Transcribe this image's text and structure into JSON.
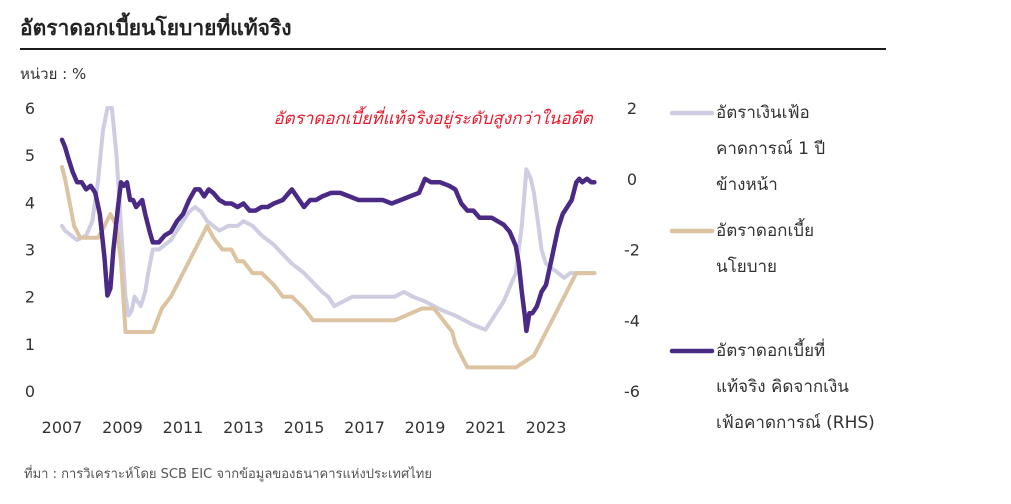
{
  "title": "อัตราดอกเบี้ยนโยบายที่แท้จริง",
  "unit_label": "หน่วย : %",
  "source": "ที่มา : การวิเคราะห์โดย SCB EIC จากข้อมูลของธนาคารแห่งประเทศไทย",
  "colors": {
    "inflation": "#cfcde2",
    "policy": "#dcc3a2",
    "real": "#4b2a86",
    "annotation": "#e8192c"
  },
  "chart_data": {
    "type": "line",
    "annotation": "อัตราดอกเบี้ยที่แท้จริงอยู่ระดับสูงกว่าในอดีต",
    "x_ticks": [
      "2007",
      "2009",
      "2011",
      "2013",
      "2015",
      "2017",
      "2019",
      "2021",
      "2023"
    ],
    "y_left": {
      "range": [
        0,
        6
      ],
      "ticks": [
        "0",
        "1",
        "2",
        "3",
        "4",
        "5",
        "6"
      ]
    },
    "y_right": {
      "range": [
        -6,
        2
      ],
      "ticks": [
        "-6",
        "-4",
        "-2",
        "0",
        "2"
      ]
    },
    "legend": [
      {
        "key": "inflation",
        "lines": [
          "อัตราเงินเฟ้อ",
          "คาดการณ์ 1 ปี",
          "ข้างหน้า"
        ]
      },
      {
        "key": "policy",
        "lines": [
          "อัตราดอกเบี้ย",
          "นโยบาย"
        ]
      },
      {
        "key": "real",
        "lines": [
          "อัตราดอกเบี้ยที่",
          "แท้จริง คิดจากเงิน",
          "เฟ้อคาดการณ์ (RHS)"
        ]
      }
    ],
    "series": [
      {
        "key": "inflation",
        "axis": "left",
        "x": [
          2007.0,
          2007.1,
          2007.3,
          2007.5,
          2007.8,
          2008.0,
          2008.2,
          2008.35,
          2008.5,
          2008.65,
          2008.8,
          2008.95,
          2009.1,
          2009.2,
          2009.3,
          2009.4,
          2009.5,
          2009.6,
          2009.75,
          2009.85,
          2010.0,
          2010.2,
          2010.4,
          2010.6,
          2010.8,
          2011.0,
          2011.2,
          2011.4,
          2011.6,
          2011.8,
          2012.0,
          2012.2,
          2012.5,
          2012.8,
          2013.0,
          2013.3,
          2013.6,
          2014.0,
          2014.3,
          2014.6,
          2015.0,
          2015.3,
          2015.6,
          2015.8,
          2016.0,
          2016.3,
          2016.6,
          2017.0,
          2017.5,
          2018.0,
          2018.3,
          2018.6,
          2019.0,
          2019.3,
          2019.6,
          2020.0,
          2020.3,
          2020.6,
          2021.0,
          2021.3,
          2021.6,
          2022.0,
          2022.2,
          2022.35,
          2022.5,
          2022.6,
          2022.75,
          2022.85,
          2023.0,
          2023.2,
          2023.4,
          2023.6,
          2023.8,
          2024.0,
          2024.3,
          2024.6
        ],
        "y": [
          3.5,
          3.4,
          3.3,
          3.2,
          3.3,
          3.6,
          4.5,
          5.5,
          6.0,
          6.0,
          5.0,
          3.5,
          2.0,
          1.6,
          1.7,
          2.0,
          1.9,
          1.8,
          2.1,
          2.5,
          3.0,
          3.0,
          3.1,
          3.2,
          3.4,
          3.6,
          3.8,
          3.9,
          3.8,
          3.6,
          3.5,
          3.4,
          3.5,
          3.5,
          3.6,
          3.5,
          3.3,
          3.1,
          2.9,
          2.7,
          2.5,
          2.3,
          2.1,
          2.0,
          1.8,
          1.9,
          2.0,
          2.0,
          2.0,
          2.0,
          2.1,
          2.0,
          1.9,
          1.8,
          1.7,
          1.6,
          1.5,
          1.4,
          1.3,
          1.6,
          1.9,
          2.5,
          3.5,
          4.7,
          4.5,
          4.2,
          3.5,
          3.0,
          2.7,
          2.6,
          2.5,
          2.4,
          2.5,
          2.5,
          2.5,
          2.5
        ]
      },
      {
        "key": "policy",
        "axis": "left",
        "x": [
          2007.0,
          2007.1,
          2007.25,
          2007.4,
          2007.6,
          2007.8,
          2008.0,
          2008.2,
          2008.4,
          2008.6,
          2008.8,
          2008.95,
          2009.1,
          2009.3,
          2009.5,
          2009.7,
          2010.0,
          2010.3,
          2010.6,
          2010.8,
          2011.0,
          2011.2,
          2011.4,
          2011.6,
          2011.8,
          2012.0,
          2012.3,
          2012.6,
          2012.8,
          2013.0,
          2013.3,
          2013.6,
          2014.0,
          2014.3,
          2014.6,
          2015.0,
          2015.3,
          2015.6,
          2016.0,
          2017.0,
          2018.0,
          2018.9,
          2019.0,
          2019.3,
          2019.6,
          2019.9,
          2020.0,
          2020.2,
          2020.4,
          2020.6,
          2021.0,
          2022.0,
          2022.6,
          2022.8,
          2023.0,
          2023.2,
          2023.4,
          2023.6,
          2023.8,
          2024.0,
          2024.3,
          2024.6
        ],
        "y": [
          4.75,
          4.5,
          4.0,
          3.5,
          3.25,
          3.25,
          3.25,
          3.25,
          3.5,
          3.75,
          3.5,
          2.75,
          1.25,
          1.25,
          1.25,
          1.25,
          1.25,
          1.75,
          2.0,
          2.25,
          2.5,
          2.75,
          3.0,
          3.25,
          3.5,
          3.25,
          3.0,
          3.0,
          2.75,
          2.75,
          2.5,
          2.5,
          2.25,
          2.0,
          2.0,
          1.75,
          1.5,
          1.5,
          1.5,
          1.5,
          1.5,
          1.75,
          1.75,
          1.75,
          1.5,
          1.25,
          1.0,
          0.75,
          0.5,
          0.5,
          0.5,
          0.5,
          0.75,
          1.0,
          1.25,
          1.5,
          1.75,
          2.0,
          2.25,
          2.5,
          2.5,
          2.5
        ]
      },
      {
        "key": "real",
        "axis": "right",
        "x": [
          2007.0,
          2007.1,
          2007.2,
          2007.35,
          2007.5,
          2007.65,
          2007.8,
          2007.95,
          2008.1,
          2008.25,
          2008.4,
          2008.5,
          2008.6,
          2008.7,
          2008.85,
          2008.95,
          2009.05,
          2009.15,
          2009.25,
          2009.35,
          2009.45,
          2009.55,
          2009.65,
          2009.75,
          2009.9,
          2010.0,
          2010.2,
          2010.4,
          2010.6,
          2010.8,
          2011.0,
          2011.2,
          2011.4,
          2011.55,
          2011.7,
          2011.85,
          2012.0,
          2012.2,
          2012.4,
          2012.6,
          2012.8,
          2013.0,
          2013.2,
          2013.4,
          2013.6,
          2013.8,
          2014.0,
          2014.3,
          2014.6,
          2015.0,
          2015.2,
          2015.4,
          2015.6,
          2015.9,
          2016.2,
          2016.5,
          2016.8,
          2017.0,
          2017.3,
          2017.6,
          2017.9,
          2018.2,
          2018.5,
          2018.8,
          2019.0,
          2019.2,
          2019.5,
          2019.8,
          2020.0,
          2020.2,
          2020.4,
          2020.6,
          2020.8,
          2021.0,
          2021.2,
          2021.4,
          2021.6,
          2021.8,
          2022.0,
          2022.1,
          2022.2,
          2022.3,
          2022.35,
          2022.45,
          2022.55,
          2022.7,
          2022.85,
          2023.0,
          2023.2,
          2023.4,
          2023.55,
          2023.7,
          2023.85,
          2024.0,
          2024.1,
          2024.2,
          2024.35,
          2024.5,
          2024.6
        ],
        "y": [
          1.1,
          0.9,
          0.6,
          0.2,
          -0.1,
          -0.1,
          -0.3,
          -0.2,
          -0.4,
          -1.0,
          -2.2,
          -3.3,
          -3.1,
          -2.0,
          -0.8,
          -0.1,
          -0.2,
          -0.1,
          -0.6,
          -0.6,
          -0.8,
          -0.7,
          -0.6,
          -1.0,
          -1.5,
          -1.8,
          -1.8,
          -1.6,
          -1.5,
          -1.2,
          -1.0,
          -0.6,
          -0.3,
          -0.3,
          -0.5,
          -0.3,
          -0.4,
          -0.6,
          -0.7,
          -0.7,
          -0.8,
          -0.7,
          -0.9,
          -0.9,
          -0.8,
          -0.8,
          -0.7,
          -0.6,
          -0.3,
          -0.8,
          -0.6,
          -0.6,
          -0.5,
          -0.4,
          -0.4,
          -0.5,
          -0.6,
          -0.6,
          -0.6,
          -0.6,
          -0.7,
          -0.6,
          -0.5,
          -0.4,
          0.0,
          -0.1,
          -0.1,
          -0.2,
          -0.3,
          -0.7,
          -0.9,
          -0.9,
          -1.1,
          -1.1,
          -1.1,
          -1.2,
          -1.3,
          -1.5,
          -1.9,
          -2.4,
          -3.2,
          -3.9,
          -4.3,
          -3.8,
          -3.8,
          -3.6,
          -3.2,
          -3.0,
          -2.2,
          -1.4,
          -1.0,
          -0.8,
          -0.6,
          -0.1,
          0.0,
          -0.1,
          0.0,
          -0.1,
          -0.1
        ]
      }
    ]
  }
}
